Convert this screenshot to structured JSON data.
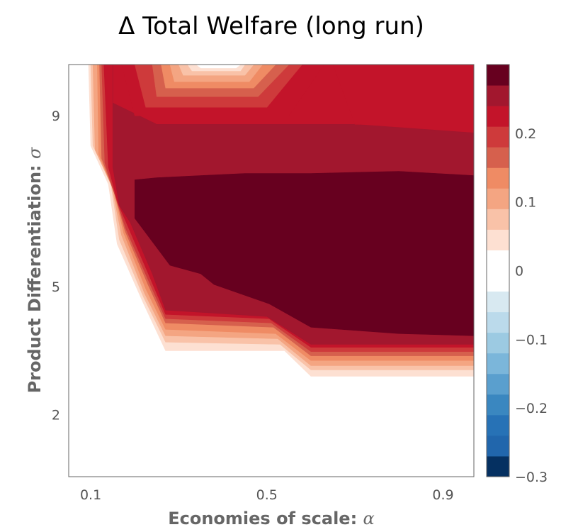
{
  "chart_data": {
    "type": "heatmap",
    "subtype": "filled-contour",
    "title": "Δ Total Welfare (long run)",
    "xlabel": {
      "text": "Economies of scale:",
      "symbol": "α"
    },
    "ylabel": {
      "text": "Product Differentiation:",
      "symbol": "σ"
    },
    "xlim": [
      0.05,
      0.97
    ],
    "ylim": [
      0.55,
      10.2
    ],
    "x_ticks": [
      {
        "value": 0.1,
        "label": "0.1"
      },
      {
        "value": 0.5,
        "label": "0.5"
      },
      {
        "value": 0.9,
        "label": "0.9"
      }
    ],
    "y_ticks": [
      {
        "value": 2,
        "label": "2"
      },
      {
        "value": 5,
        "label": "5"
      },
      {
        "value": 9,
        "label": "9"
      }
    ],
    "colorbar": {
      "levels": [
        -0.3,
        -0.27,
        -0.24,
        -0.21,
        -0.18,
        -0.15,
        -0.12,
        -0.09,
        -0.06,
        -0.03,
        0,
        0.03,
        0.06,
        0.09,
        0.12,
        0.15,
        0.18,
        0.21,
        0.24,
        0.27,
        0.3
      ],
      "colors": [
        "#053061",
        "#2166ac",
        "#2772b6",
        "#3a87c0",
        "#5a9fce",
        "#7bb6da",
        "#9ccae2",
        "#bbdaeb",
        "#d8e9f1",
        "#ffffff",
        "#ffffff",
        "#fde0d2",
        "#f9c2a8",
        "#f4a582",
        "#ef8b64",
        "#d6604d",
        "#ce3a3b",
        "#c3142a",
        "#a2172e",
        "#67001f"
      ],
      "tick_labels": [
        {
          "value": 0.2,
          "label": "0.2"
        },
        {
          "value": 0.1,
          "label": "0.1"
        },
        {
          "value": 0,
          "label": "0"
        },
        {
          "value": -0.1,
          "label": "−0.1"
        },
        {
          "value": -0.2,
          "label": "−0.2"
        },
        {
          "value": -0.3,
          "label": "−0.3"
        }
      ]
    },
    "contours": [
      {
        "level": 0.03,
        "color": "#fde0d2",
        "points": [
          [
            0.095,
            10.2
          ],
          [
            0.1,
            8.3
          ],
          [
            0.14,
            7.4
          ],
          [
            0.16,
            6.0
          ],
          [
            0.22,
            4.6
          ],
          [
            0.27,
            3.5
          ],
          [
            0.54,
            3.5
          ],
          [
            0.6,
            2.9
          ],
          [
            0.97,
            2.9
          ],
          [
            0.97,
            10.2
          ]
        ]
      },
      {
        "level": 0.06,
        "color": "#f9c2a8",
        "points": [
          [
            0.1,
            10.2
          ],
          [
            0.105,
            8.3
          ],
          [
            0.145,
            7.45
          ],
          [
            0.165,
            6.1
          ],
          [
            0.22,
            4.75
          ],
          [
            0.27,
            3.7
          ],
          [
            0.53,
            3.65
          ],
          [
            0.6,
            3.05
          ],
          [
            0.97,
            3.05
          ],
          [
            0.97,
            10.2
          ]
        ]
      },
      {
        "level": 0.09,
        "color": "#f4a582",
        "points": [
          [
            0.105,
            10.2
          ],
          [
            0.11,
            8.2
          ],
          [
            0.148,
            7.35
          ],
          [
            0.17,
            6.2
          ],
          [
            0.222,
            4.85
          ],
          [
            0.27,
            3.85
          ],
          [
            0.525,
            3.78
          ],
          [
            0.6,
            3.15
          ],
          [
            0.97,
            3.15
          ],
          [
            0.97,
            10.2
          ]
        ]
      },
      {
        "level": 0.12,
        "color": "#ef8b64",
        "points": [
          [
            0.115,
            10.2
          ],
          [
            0.118,
            8.1
          ],
          [
            0.152,
            7.25
          ],
          [
            0.175,
            6.25
          ],
          [
            0.225,
            4.95
          ],
          [
            0.27,
            4.0
          ],
          [
            0.52,
            3.9
          ],
          [
            0.6,
            3.27
          ],
          [
            0.97,
            3.27
          ],
          [
            0.97,
            10.2
          ]
        ]
      },
      {
        "level": 0.15,
        "color": "#d6604d",
        "points": [
          [
            0.12,
            10.2
          ],
          [
            0.125,
            8.0
          ],
          [
            0.155,
            7.15
          ],
          [
            0.178,
            6.3
          ],
          [
            0.23,
            5.05
          ],
          [
            0.27,
            4.15
          ],
          [
            0.515,
            4.05
          ],
          [
            0.6,
            3.38
          ],
          [
            0.97,
            3.38
          ],
          [
            0.97,
            10.2
          ]
        ]
      },
      {
        "level": 0.18,
        "color": "#ce3a3b",
        "points": [
          [
            0.125,
            10.2
          ],
          [
            0.132,
            7.9
          ],
          [
            0.158,
            7.05
          ],
          [
            0.18,
            6.35
          ],
          [
            0.232,
            5.12
          ],
          [
            0.27,
            4.25
          ],
          [
            0.51,
            4.15
          ],
          [
            0.6,
            3.48
          ],
          [
            0.97,
            3.48
          ],
          [
            0.97,
            10.2
          ]
        ]
      },
      {
        "level": 0.21,
        "color": "#c3142a",
        "points": [
          [
            0.13,
            10.2
          ],
          [
            0.14,
            7.8
          ],
          [
            0.162,
            6.95
          ],
          [
            0.185,
            6.4
          ],
          [
            0.235,
            5.2
          ],
          [
            0.27,
            4.35
          ],
          [
            0.505,
            4.25
          ],
          [
            0.6,
            3.58
          ],
          [
            0.97,
            3.58
          ],
          [
            0.97,
            10.2
          ]
        ]
      },
      {
        "level": 0.24,
        "color": "#a2172e",
        "points": [
          [
            0.15,
            10.2
          ],
          [
            0.15,
            7.8
          ],
          [
            0.165,
            6.9
          ],
          [
            0.19,
            6.5
          ],
          [
            0.24,
            5.3
          ],
          [
            0.27,
            4.45
          ],
          [
            0.5,
            4.3
          ],
          [
            0.6,
            3.65
          ],
          [
            0.97,
            3.65
          ],
          [
            0.97,
            8.6
          ],
          [
            0.7,
            8.8
          ],
          [
            0.55,
            8.8
          ],
          [
            0.25,
            8.8
          ],
          [
            0.15,
            9.3
          ]
        ]
      },
      {
        "level": 0.27,
        "color": "#67001f",
        "points": [
          [
            0.2,
            7.5
          ],
          [
            0.25,
            7.55
          ],
          [
            0.45,
            7.65
          ],
          [
            0.6,
            7.65
          ],
          [
            0.8,
            7.7
          ],
          [
            0.97,
            7.6
          ],
          [
            0.97,
            3.85
          ],
          [
            0.8,
            3.9
          ],
          [
            0.6,
            4.05
          ],
          [
            0.505,
            4.6
          ],
          [
            0.38,
            5.05
          ],
          [
            0.35,
            5.3
          ],
          [
            0.28,
            5.5
          ],
          [
            0.2,
            6.6
          ]
        ]
      },
      {
        "level": 0.21,
        "color": "#c3142a",
        "points": [
          [
            0.65,
            10.2
          ],
          [
            0.97,
            10.2
          ],
          [
            0.97,
            8.8
          ],
          [
            0.7,
            8.8
          ]
        ]
      },
      {
        "level": 0.21,
        "color": "#c3142a",
        "points": [
          [
            0.17,
            10.2
          ],
          [
            0.2,
            9.0
          ],
          [
            0.25,
            9.0
          ],
          [
            0.5,
            9.0
          ],
          [
            0.55,
            9.0
          ],
          [
            0.63,
            10.2
          ]
        ]
      },
      {
        "level": 0.18,
        "color": "#ce3a3b",
        "points": [
          [
            0.2,
            10.2
          ],
          [
            0.225,
            9.2
          ],
          [
            0.5,
            9.2
          ],
          [
            0.58,
            10.2
          ]
        ]
      },
      {
        "level": 0.15,
        "color": "#d6604d",
        "points": [
          [
            0.24,
            10.2
          ],
          [
            0.25,
            9.45
          ],
          [
            0.48,
            9.45
          ],
          [
            0.55,
            10.2
          ]
        ]
      },
      {
        "level": 0.12,
        "color": "#ef8b64",
        "points": [
          [
            0.26,
            10.2
          ],
          [
            0.27,
            9.65
          ],
          [
            0.47,
            9.65
          ],
          [
            0.52,
            10.2
          ]
        ]
      },
      {
        "level": 0.09,
        "color": "#f4a582",
        "points": [
          [
            0.28,
            10.2
          ],
          [
            0.29,
            9.8
          ],
          [
            0.46,
            9.8
          ],
          [
            0.49,
            10.2
          ]
        ]
      },
      {
        "level": 0.06,
        "color": "#f9c2a8",
        "points": [
          [
            0.3,
            10.2
          ],
          [
            0.31,
            9.95
          ],
          [
            0.45,
            9.95
          ],
          [
            0.47,
            10.2
          ]
        ]
      },
      {
        "level": 0.03,
        "color": "#fde0d2",
        "points": [
          [
            0.32,
            10.2
          ],
          [
            0.33,
            10.05
          ],
          [
            0.44,
            10.05
          ],
          [
            0.45,
            10.2
          ]
        ]
      },
      {
        "level": 0.0,
        "color": "#ffffff",
        "points": [
          [
            0.34,
            10.2
          ],
          [
            0.35,
            10.12
          ],
          [
            0.43,
            10.12
          ],
          [
            0.44,
            10.2
          ]
        ]
      }
    ]
  }
}
